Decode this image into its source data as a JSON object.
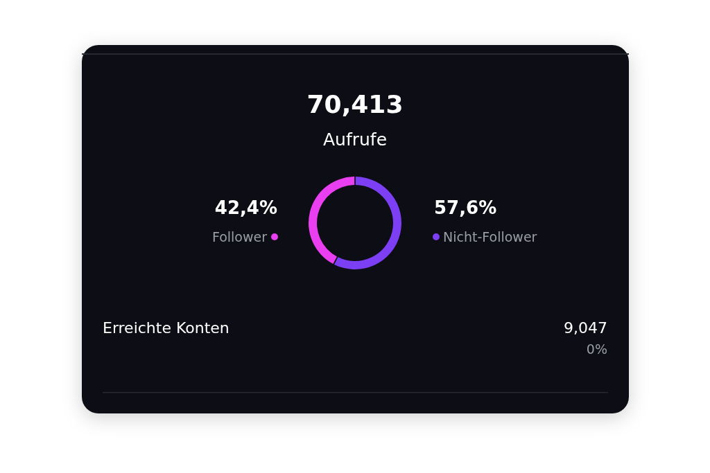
{
  "chart_data": {
    "type": "donut",
    "title": "70,413",
    "subtitle": "Aufrufe",
    "categories": [
      "Follower",
      "Nicht-Follower"
    ],
    "values": [
      42.4,
      57.6
    ],
    "colors": [
      "#ea3ff0",
      "#7c3ff3"
    ],
    "value_labels": [
      "42,4%",
      "57,6%"
    ],
    "annotations": [
      "Erreichte Konten",
      "9,047",
      "0%"
    ]
  }
}
